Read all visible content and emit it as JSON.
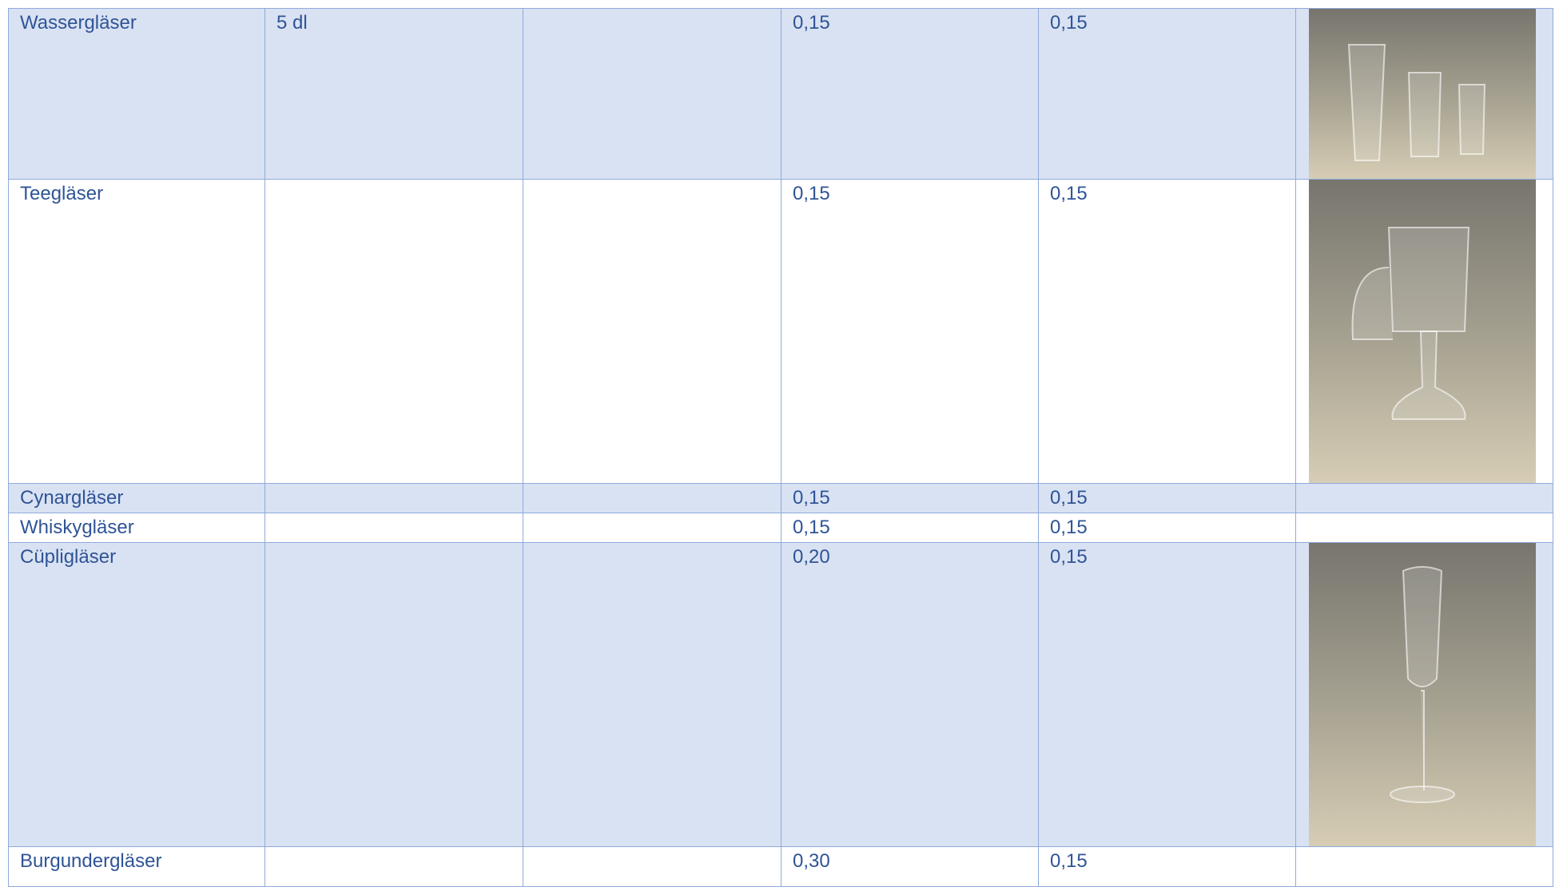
{
  "table": {
    "rows": [
      {
        "item": "Wassergläser",
        "volume": "5 dl",
        "price_a": "0,15",
        "price_b": "0,15"
      },
      {
        "item": "Teegläser",
        "price_a": "0,15",
        "price_b": "0,15"
      },
      {
        "item": "Cynargläser",
        "price_a": "0,15",
        "price_b": "0,15"
      },
      {
        "item": "Whiskygläser",
        "price_a": "0,15",
        "price_b": "0,15"
      },
      {
        "item": "Cüpligläser",
        "price_a": "0,20",
        "price_b": "0,15"
      },
      {
        "item": "Burgundergläser",
        "price_a": "0,30",
        "price_b": "0,15"
      }
    ]
  }
}
